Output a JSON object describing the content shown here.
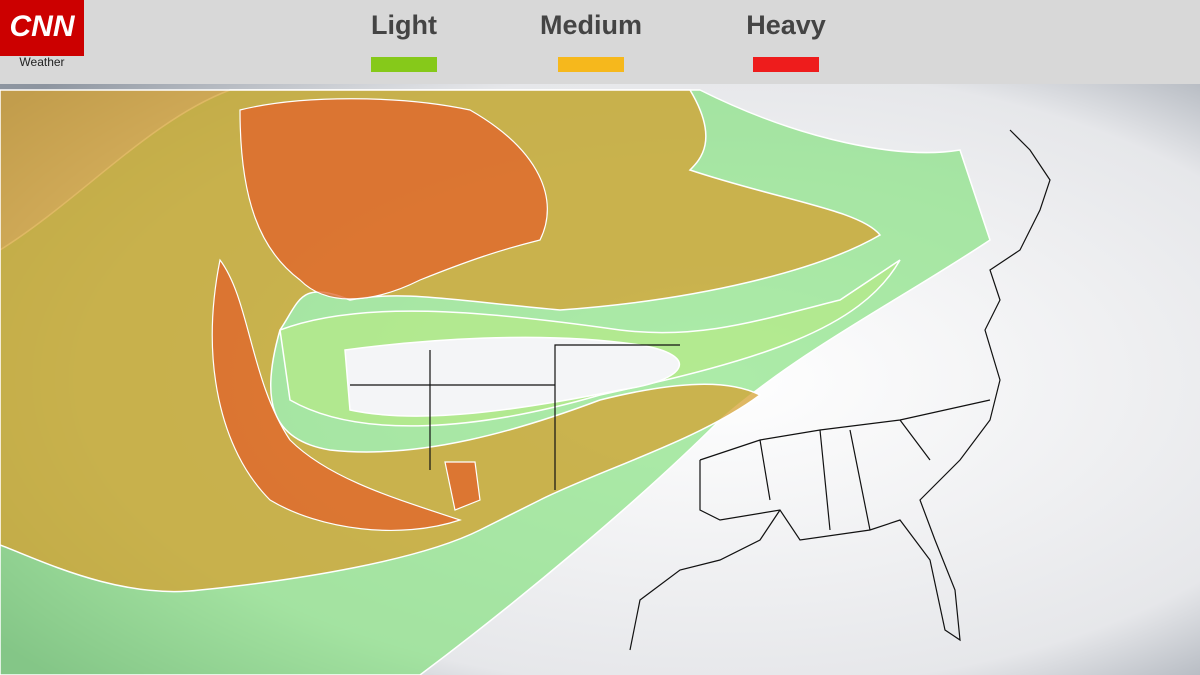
{
  "header": {
    "logo": "CNN",
    "logo_subtitle": "Weather"
  },
  "legend": [
    {
      "label": "Light",
      "color": "#86c91a"
    },
    {
      "label": "Medium",
      "color": "#f6b81c"
    },
    {
      "label": "Heavy",
      "color": "#ee1c1c"
    }
  ]
}
